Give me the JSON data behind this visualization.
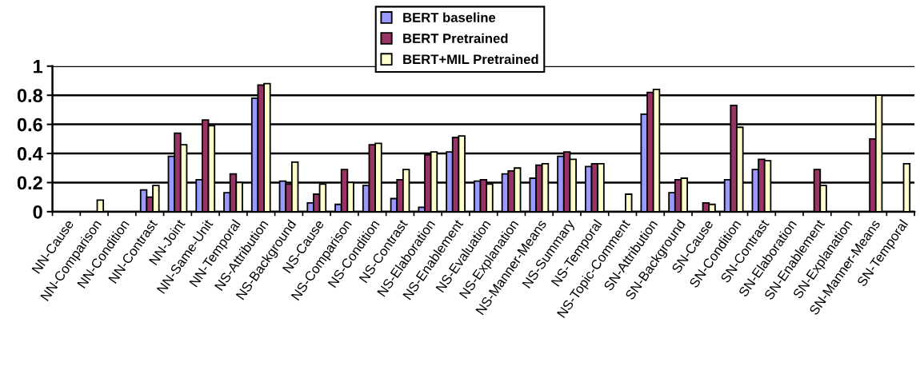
{
  "chart_data": {
    "type": "bar",
    "categories": [
      "NN-Cause",
      "NN-Comparison",
      "NN-Condition",
      "NN-Contrast",
      "NN-Joint",
      "NN-Same-Unit",
      "NN-Temporal",
      "NS-Attribution",
      "NS-Background",
      "NS-Cause",
      "NS-Comparison",
      "NS-Condition",
      "NS-Contrast",
      "NS-Elaboration",
      "NS-Enablement",
      "NS-Evaluation",
      "NS-Explanation",
      "NS-Manner-Means",
      "NS-Summary",
      "NS-Temporal",
      "NS-Topic-Comment",
      "SN-Attribution",
      "SN-Background",
      "SN-Cause",
      "SN-Condition",
      "SN-Contrast",
      "SN-Elaboration",
      "SN-Enablement",
      "SN-Explanation",
      "SN-Manner-Means",
      "SN-Temporal"
    ],
    "series": [
      {
        "name": "BERT baseline",
        "color": "#9999ff",
        "values": [
          null,
          null,
          null,
          0.15,
          0.38,
          0.22,
          0.13,
          0.78,
          0.21,
          0.06,
          0.05,
          0.18,
          0.09,
          0.03,
          0.41,
          0.21,
          0.26,
          0.23,
          0.38,
          0.31,
          null,
          0.67,
          0.13,
          null,
          0.22,
          0.29,
          null,
          null,
          null,
          null,
          null
        ]
      },
      {
        "name": "BERT Pretrained",
        "color": "#993366",
        "values": [
          null,
          null,
          null,
          0.1,
          0.54,
          0.63,
          0.26,
          0.87,
          0.19,
          0.12,
          0.29,
          0.46,
          0.22,
          0.39,
          0.51,
          0.22,
          0.28,
          0.32,
          0.41,
          0.33,
          null,
          0.82,
          0.22,
          0.06,
          0.73,
          0.36,
          null,
          0.29,
          null,
          0.5,
          null
        ]
      },
      {
        "name": "BERT+MIL Pretrained",
        "color": "#ffffcc",
        "values": [
          null,
          0.08,
          null,
          0.18,
          0.46,
          0.59,
          0.2,
          0.88,
          0.34,
          0.19,
          0.2,
          0.47,
          0.29,
          0.41,
          0.52,
          0.19,
          0.3,
          0.33,
          0.36,
          0.33,
          0.12,
          0.84,
          0.23,
          0.05,
          0.58,
          0.35,
          null,
          0.18,
          null,
          0.8,
          0.33
        ]
      }
    ],
    "ylim": [
      0,
      1
    ],
    "yticks": [
      0,
      0.2,
      0.4,
      0.6,
      0.8,
      1
    ],
    "grid": "y",
    "legend": "top"
  }
}
